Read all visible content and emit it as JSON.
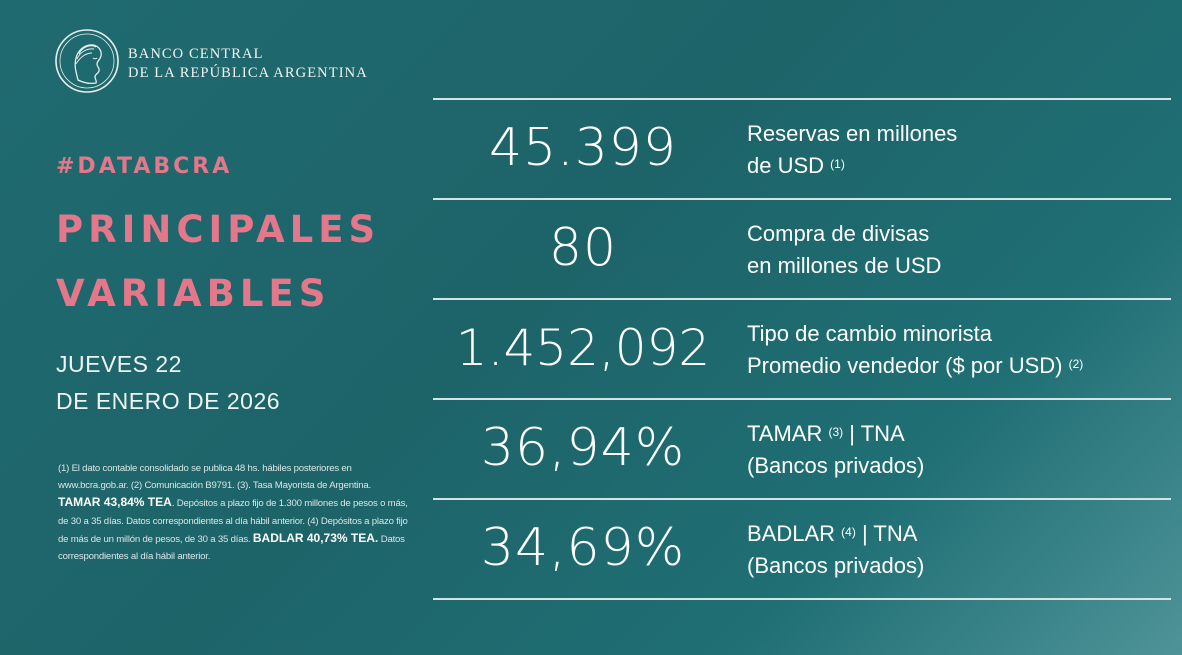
{
  "header": {
    "bank_line1": "BANCO CENTRAL",
    "bank_line2": "DE LA REPÚBLICA ARGENTINA",
    "hashtag": "#DATABCRA",
    "title_line1": "PRINCIPALES",
    "title_line2": "VARIABLES",
    "date_line1": "JUEVES 22",
    "date_line2": "DE ENERO DE 2026"
  },
  "footnote": {
    "part1": "(1) El dato contable consolidado se publica 48 hs. hábiles posteriores en www.bcra.gob.ar. (2) Comunicación B9791. (3). Tasa Mayorista de Argentina. ",
    "tamar_bold": "TAMAR 43,84% TEA",
    "part2": ". Depósitos a plazo fijo de 1.300 millones de pesos o más, de 30 a 35 días. Datos correspondientes al día hábil anterior. (4) Depósitos a plazo fijo de más de un millón de pesos, de 30 a 35 días. ",
    "badlar_bold": "BADLAR 40,73% TEA.",
    "part3": " Datos correspondientes al día hábil anterior."
  },
  "indicators": [
    {
      "value": "45.399",
      "label_line1": "Reservas en millones",
      "label_line2": "de USD",
      "note2": "(1)"
    },
    {
      "value": "80",
      "label_line1": "Compra de divisas",
      "label_line2": "en millones de USD"
    },
    {
      "value": "1.452,092",
      "label_line1": "Tipo de cambio minorista",
      "label_line2": "Promedio vendedor ($ por USD)",
      "note2": "(2)"
    },
    {
      "value": "36,94%",
      "label_line1": "TAMAR",
      "note1": "(3)",
      "label_line1b": "| TNA",
      "label_line2": "(Bancos privados)"
    },
    {
      "value": "34,69%",
      "label_line1": "BADLAR",
      "note1": "(4)",
      "label_line1b": "| TNA",
      "label_line2": "(Bancos privados)"
    }
  ],
  "colors": {
    "background": "#1e676c",
    "accent_pink": "#e5778a",
    "text": "#ffffff",
    "rule": "#d6e3e4"
  },
  "icons": {
    "seal": "republic-head-seal-icon"
  }
}
